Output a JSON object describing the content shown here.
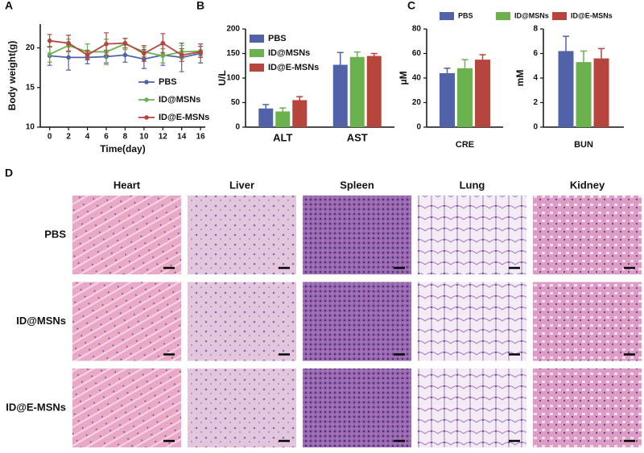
{
  "chart_data": [
    {
      "type": "line",
      "panel": "A",
      "x_label": "Time(day)",
      "y_label": "Body weight(g)",
      "x": [
        0,
        2,
        4,
        6,
        8,
        10,
        12,
        14,
        16
      ],
      "xlim": [
        -1,
        16.5
      ],
      "xticks": [
        0,
        2,
        4,
        6,
        8,
        10,
        12,
        14,
        16
      ],
      "ylim": [
        10,
        23
      ],
      "yticks": [
        10,
        15,
        20
      ],
      "series": [
        {
          "name": "PBS",
          "color": "#5262a8",
          "values": [
            19.0,
            18.8,
            18.8,
            18.9,
            19.1,
            18.6,
            19.1,
            18.8,
            19.3
          ],
          "errors": [
            1.2,
            1.6,
            0.8,
            0.8,
            0.9,
            1.2,
            1.3,
            1.8,
            1.2
          ]
        },
        {
          "name": "ID@MSNs",
          "color": "#6bb24e",
          "values": [
            19.2,
            20.3,
            19.5,
            19.5,
            20.5,
            19.5,
            19.0,
            19.5,
            19.6
          ],
          "errors": [
            1.0,
            0.8,
            1.0,
            1.6,
            0.7,
            0.6,
            0.9,
            0.8,
            0.6
          ]
        },
        {
          "name": "ID@E-MSNs",
          "color": "#b5453d",
          "values": [
            20.9,
            20.6,
            19.1,
            20.5,
            20.6,
            19.3,
            20.6,
            19.1,
            19.5
          ],
          "errors": [
            0.8,
            1.0,
            0.6,
            1.4,
            0.6,
            1.0,
            1.2,
            0.8,
            0.7
          ]
        }
      ]
    },
    {
      "type": "bar",
      "panel": "B",
      "y_label": "U/L",
      "categories": [
        "ALT",
        "AST"
      ],
      "ylim": [
        0,
        200
      ],
      "yticks": [
        0,
        50,
        100,
        150,
        200
      ],
      "series": [
        {
          "name": "PBS",
          "color": "#5262a8",
          "values": [
            38,
            127
          ],
          "errors": [
            8,
            25
          ]
        },
        {
          "name": "ID@MSNs",
          "color": "#6bb24e",
          "values": [
            32,
            143
          ],
          "errors": [
            7,
            10
          ]
        },
        {
          "name": "ID@E-MSNs",
          "color": "#b5453d",
          "values": [
            55,
            145
          ],
          "errors": [
            7,
            5
          ]
        }
      ]
    },
    {
      "type": "bar",
      "panel": "C",
      "y_label": "μM",
      "categories": [
        "CRE"
      ],
      "ylim": [
        0,
        80
      ],
      "yticks": [
        0,
        20,
        40,
        60,
        80
      ],
      "series": [
        {
          "name": "PBS",
          "color": "#5262a8",
          "values": [
            44
          ],
          "errors": [
            4
          ]
        },
        {
          "name": "ID@MSNs",
          "color": "#6bb24e",
          "values": [
            48
          ],
          "errors": [
            7
          ]
        },
        {
          "name": "ID@E-MSNs",
          "color": "#b5453d",
          "values": [
            55
          ],
          "errors": [
            4
          ]
        }
      ]
    },
    {
      "type": "bar",
      "y_label": "mM",
      "categories": [
        "BUN"
      ],
      "ylim": [
        0,
        8
      ],
      "yticks": [
        0,
        2,
        4,
        6,
        8
      ],
      "series": [
        {
          "color": "#5262a8",
          "values": [
            6.2
          ],
          "errors": [
            1.2
          ]
        },
        {
          "color": "#6bb24e",
          "values": [
            5.3
          ],
          "errors": [
            0.9
          ]
        },
        {
          "color": "#b5453d",
          "values": [
            5.6
          ],
          "errors": [
            0.8
          ]
        }
      ]
    }
  ],
  "histology": {
    "panel": "D",
    "columns": [
      "Heart",
      "Liver",
      "Spleen",
      "Lung",
      "Kidney"
    ],
    "rows": [
      "PBS",
      "ID@MSNs",
      "ID@E-MSNs"
    ]
  }
}
